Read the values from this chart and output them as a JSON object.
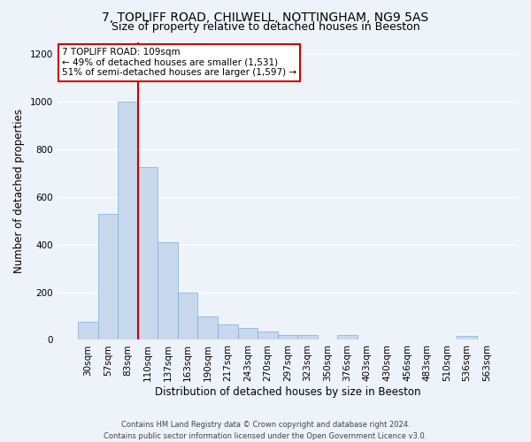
{
  "title1": "7, TOPLIFF ROAD, CHILWELL, NOTTINGHAM, NG9 5AS",
  "title2": "Size of property relative to detached houses in Beeston",
  "xlabel": "Distribution of detached houses by size in Beeston",
  "ylabel": "Number of detached properties",
  "footer1": "Contains HM Land Registry data © Crown copyright and database right 2024.",
  "footer2": "Contains public sector information licensed under the Open Government Licence v3.0.",
  "bar_color": "#c8d9ee",
  "bar_edge_color": "#7aaed4",
  "categories": [
    "30sqm",
    "57sqm",
    "83sqm",
    "110sqm",
    "137sqm",
    "163sqm",
    "190sqm",
    "217sqm",
    "243sqm",
    "270sqm",
    "297sqm",
    "323sqm",
    "350sqm",
    "376sqm",
    "403sqm",
    "430sqm",
    "456sqm",
    "483sqm",
    "510sqm",
    "536sqm",
    "563sqm"
  ],
  "values": [
    75,
    530,
    1000,
    725,
    410,
    200,
    100,
    65,
    50,
    35,
    20,
    20,
    0,
    20,
    0,
    0,
    0,
    0,
    0,
    15,
    0
  ],
  "annotation_text": "7 TOPLIFF ROAD: 109sqm\n← 49% of detached houses are smaller (1,531)\n51% of semi-detached houses are larger (1,597) →",
  "annotation_box_color": "#ffffff",
  "annotation_border_color": "#cc0000",
  "vline_color": "#cc0000",
  "vline_x_index": 3,
  "ylim": [
    0,
    1250
  ],
  "yticks": [
    0,
    200,
    400,
    600,
    800,
    1000,
    1200
  ],
  "background_color": "#eef2f9",
  "grid_color": "#ffffff",
  "title1_fontsize": 10,
  "title2_fontsize": 9,
  "xlabel_fontsize": 8.5,
  "ylabel_fontsize": 8.5,
  "tick_fontsize": 7.5,
  "annotation_fontsize": 7.5,
  "footer_fontsize": 6
}
